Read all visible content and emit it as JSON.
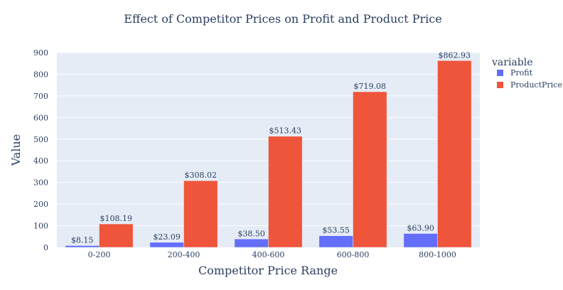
{
  "chart_data": {
    "type": "bar",
    "title": "Effect of Competitor Prices on Profit and Product Price",
    "xlabel": "Competitor Price Range",
    "ylabel": "Value",
    "categories": [
      "0-200",
      "200-400",
      "400-600",
      "600-800",
      "800-1000"
    ],
    "ylim": [
      0,
      900
    ],
    "yticks": [
      0,
      100,
      200,
      300,
      400,
      500,
      600,
      700,
      800,
      900
    ],
    "grid": true,
    "legend": {
      "title": "variable",
      "placement": "top-right"
    },
    "series": [
      {
        "name": "Profit",
        "color": "#636efa",
        "values": [
          8.15,
          23.09,
          38.5,
          53.55,
          63.9
        ],
        "labels": [
          "$8.15",
          "$23.09",
          "$38.50",
          "$53.55",
          "$63.90"
        ]
      },
      {
        "name": "ProductPrice",
        "color": "#ef553b",
        "values": [
          108.19,
          308.02,
          513.43,
          719.08,
          862.93
        ],
        "labels": [
          "$108.19",
          "$308.02",
          "$513.43",
          "$719.08",
          "$862.93"
        ]
      }
    ],
    "colors": {
      "plot_background": "#e5ecf6",
      "gridline": "#ffffff",
      "text": "#2a3f5f"
    }
  }
}
